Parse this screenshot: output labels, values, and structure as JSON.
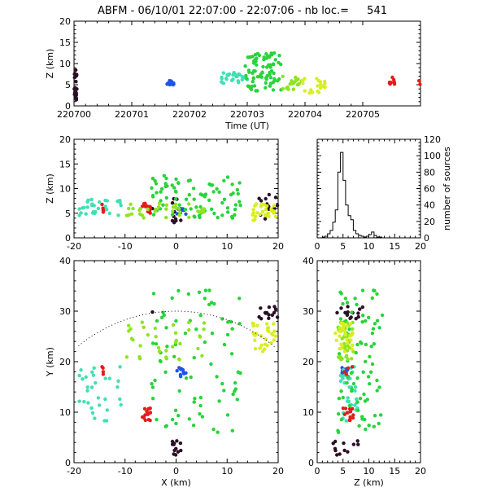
{
  "title": "ABFM - 06/10/01 22:07:00 - 22:07:06 - nb loc.=",
  "nb_loc": "541",
  "colors": {
    "black": "#2b0f26",
    "blue": "#1f55e6",
    "cyan": "#3fe0b4",
    "green": "#27d43a",
    "lime": "#8ee51e",
    "yellow": "#d8ef1f",
    "red": "#e51b1b"
  },
  "chart_data": [
    {
      "id": "time-panel",
      "type": "scatter",
      "xlabel": "Time (UT)",
      "ylabel": "Z (km)",
      "xlim": [
        0,
        6
      ],
      "ylim": [
        0,
        20
      ],
      "xticks": [
        0,
        1,
        2,
        3,
        4,
        5
      ],
      "xtick_labels": [
        "220700",
        "220701",
        "220702",
        "220703",
        "220704",
        "220705"
      ],
      "yticks": [
        0,
        5,
        10,
        15,
        20
      ],
      "ytick_labels": [
        "0",
        "5",
        "10",
        "15",
        "20"
      ],
      "clusters": [
        {
          "color": "black",
          "x": [
            0.0,
            0.05
          ],
          "y": [
            0,
            8.5
          ],
          "n": 22
        },
        {
          "color": "blue",
          "x": [
            1.55,
            1.8
          ],
          "y": [
            5,
            6
          ],
          "n": 12
        },
        {
          "color": "cyan",
          "x": [
            2.55,
            3.0
          ],
          "y": [
            4.5,
            8
          ],
          "n": 25
        },
        {
          "color": "green",
          "x": [
            2.95,
            3.6
          ],
          "y": [
            3.5,
            12.5
          ],
          "n": 80
        },
        {
          "color": "lime",
          "x": [
            3.6,
            3.95
          ],
          "y": [
            3.5,
            7
          ],
          "n": 18
        },
        {
          "color": "yellow",
          "x": [
            3.95,
            4.35
          ],
          "y": [
            3,
            6.5
          ],
          "n": 20
        },
        {
          "color": "red",
          "x": [
            5.45,
            5.6
          ],
          "y": [
            5,
            7
          ],
          "n": 8
        },
        {
          "color": "red",
          "x": [
            5.95,
            6.0
          ],
          "y": [
            5,
            6
          ],
          "n": 2
        }
      ]
    },
    {
      "id": "xz-panel",
      "type": "scatter",
      "xlabel": "",
      "ylabel": "Z (km)",
      "xlim": [
        -20,
        20
      ],
      "ylim": [
        0,
        20
      ],
      "xticks": [
        -20,
        -10,
        0,
        10,
        20
      ],
      "xtick_labels": [
        "-20",
        "-10",
        "0",
        "10",
        "20"
      ],
      "yticks": [
        0,
        5,
        10,
        15,
        20
      ],
      "ytick_labels": [
        "0",
        "5",
        "10",
        "15",
        "20"
      ]
    },
    {
      "id": "histogram-panel",
      "type": "bar",
      "xlabel": "",
      "ylabel": "number of sources",
      "xlim": [
        0,
        20
      ],
      "ylim": [
        0,
        120
      ],
      "xticks": [
        0,
        5,
        10,
        15,
        20
      ],
      "xtick_labels": [
        "0",
        "5",
        "10",
        "15",
        "20"
      ],
      "yticks": [
        0,
        20,
        40,
        60,
        80,
        100,
        120
      ],
      "ytick_labels": [
        "0",
        "20",
        "40",
        "60",
        "80",
        "100",
        "120"
      ],
      "bin_width": 0.5,
      "bin_start": 0,
      "values": [
        0,
        0,
        1,
        2,
        5,
        9,
        19,
        34,
        80,
        104,
        70,
        40,
        27,
        22,
        9,
        5,
        3,
        2,
        1,
        2,
        4,
        7,
        3,
        1,
        1,
        0,
        0,
        0,
        0,
        0,
        0,
        0,
        0,
        0,
        0,
        0,
        0,
        0,
        0,
        0
      ]
    },
    {
      "id": "xy-panel",
      "type": "scatter",
      "xlabel": "X (km)",
      "ylabel": "Y (km)",
      "xlim": [
        -20,
        20
      ],
      "ylim": [
        0,
        40
      ],
      "xticks": [
        -20,
        -10,
        0,
        10,
        20
      ],
      "xtick_labels": [
        "-20",
        "-10",
        "0",
        "10",
        "20"
      ],
      "yticks": [
        0,
        10,
        20,
        30,
        40
      ],
      "ytick_labels": [
        "0",
        "10",
        "20",
        "30",
        "40"
      ],
      "range_circle": {
        "center_x": 0,
        "center_y": 0,
        "radius_km": 30
      },
      "clusters": [
        {
          "color": "black",
          "x": [
            -0.8,
            1.0
          ],
          "y": [
            1.5,
            4.5
          ],
          "n": 12
        },
        {
          "color": "black",
          "x": [
            -5,
            -4
          ],
          "y": [
            29.5,
            30
          ],
          "n": 1
        },
        {
          "color": "black",
          "x": [
            16,
            20
          ],
          "y": [
            28.5,
            31
          ],
          "n": 14
        },
        {
          "color": "blue",
          "x": [
            0,
            2
          ],
          "y": [
            17,
            19
          ],
          "n": 10
        },
        {
          "color": "cyan",
          "x": [
            -19,
            -10
          ],
          "y": [
            8,
            19
          ],
          "n": 30
        },
        {
          "color": "red",
          "x": [
            -15,
            -14
          ],
          "y": [
            17.5,
            19
          ],
          "n": 4
        },
        {
          "color": "red",
          "x": [
            -7,
            -5
          ],
          "y": [
            8,
            11
          ],
          "n": 14
        },
        {
          "color": "green",
          "x": [
            -5,
            13
          ],
          "y": [
            6,
            36
          ],
          "n": 80
        },
        {
          "color": "lime",
          "x": [
            -10,
            6
          ],
          "y": [
            20,
            28
          ],
          "n": 35
        },
        {
          "color": "yellow",
          "x": [
            15,
            20
          ],
          "y": [
            22,
            28
          ],
          "n": 30
        }
      ]
    },
    {
      "id": "zy-panel",
      "type": "scatter",
      "xlabel": "Z (km)",
      "ylabel": "",
      "xlim": [
        0,
        20
      ],
      "ylim": [
        0,
        40
      ],
      "xticks": [
        0,
        5,
        10,
        15,
        20
      ],
      "xtick_labels": [
        "0",
        "5",
        "10",
        "15",
        "20"
      ],
      "yticks": [
        0,
        10,
        20,
        30,
        40
      ],
      "ytick_labels": [
        "0",
        "10",
        "20",
        "30",
        "40"
      ]
    }
  ]
}
